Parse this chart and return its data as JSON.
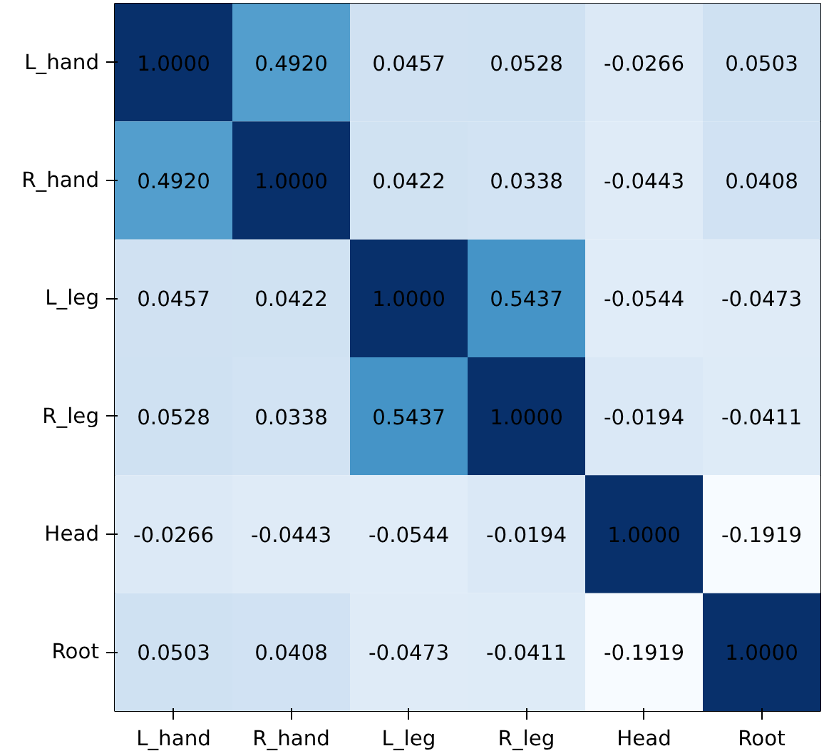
{
  "chart_data": {
    "type": "heatmap",
    "categories": [
      "L_hand",
      "R_hand",
      "L_leg",
      "R_leg",
      "Head",
      "Root"
    ],
    "y_categories": [
      "L_hand",
      "R_hand",
      "L_leg",
      "R_leg",
      "Head",
      "Root"
    ],
    "cells": [
      [
        1.0,
        0.492,
        0.0457,
        0.0528,
        -0.0266,
        0.0503
      ],
      [
        0.492,
        1.0,
        0.0422,
        0.0338,
        -0.0443,
        0.0408
      ],
      [
        0.0457,
        0.0422,
        1.0,
        0.5437,
        -0.0544,
        -0.0473
      ],
      [
        0.0528,
        0.0338,
        0.5437,
        1.0,
        -0.0194,
        -0.0411
      ],
      [
        -0.0266,
        -0.0443,
        -0.0544,
        -0.0194,
        1.0,
        -0.1919
      ],
      [
        0.0503,
        0.0408,
        -0.0473,
        -0.0411,
        -0.1919,
        1.0
      ]
    ],
    "cell_labels": [
      [
        "1.0000",
        "0.4920",
        "0.0457",
        "0.0528",
        "-0.0266",
        "0.0503"
      ],
      [
        "0.4920",
        "1.0000",
        "0.0422",
        "0.0338",
        "-0.0443",
        "0.0408"
      ],
      [
        "0.0457",
        "0.0422",
        "1.0000",
        "0.5437",
        "-0.0544",
        "-0.0473"
      ],
      [
        "0.0528",
        "0.0338",
        "0.5437",
        "1.0000",
        "-0.0194",
        "-0.0411"
      ],
      [
        "-0.0266",
        "-0.0443",
        "-0.0544",
        "-0.0194",
        "1.0000",
        "-0.1919"
      ],
      [
        "0.0503",
        "0.0408",
        "-0.0473",
        "-0.0411",
        "-0.1919",
        "1.0000"
      ]
    ]
  }
}
